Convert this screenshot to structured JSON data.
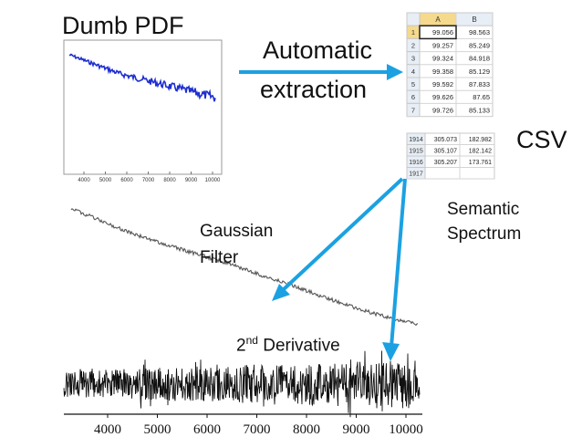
{
  "labels": {
    "dumb_pdf": "Dumb PDF",
    "automatic_1": "Automatic",
    "automatic_2": "extraction",
    "csv": "CSV",
    "semantic_1": "Semantic",
    "semantic_2": "Spectrum",
    "gaussian_1": "Gaussian",
    "gaussian_2": "Filter",
    "derivative_base": "2",
    "derivative_sup": "nd",
    "derivative_rest": " Derivative"
  },
  "pdf_thumb_ticks": [
    "4000",
    "5000",
    "6000",
    "7000",
    "8000",
    "9000",
    "10000"
  ],
  "spreadsheet_top": {
    "columns": [
      "A",
      "B"
    ],
    "rows": [
      {
        "n": "1",
        "a": "99.056",
        "b": "98.563"
      },
      {
        "n": "2",
        "a": "99.257",
        "b": "85.249"
      },
      {
        "n": "3",
        "a": "99.324",
        "b": "84.918"
      },
      {
        "n": "4",
        "a": "99.358",
        "b": "85.129"
      },
      {
        "n": "5",
        "a": "99.592",
        "b": "87.833"
      },
      {
        "n": "6",
        "a": "99.626",
        "b": "87.65"
      },
      {
        "n": "7",
        "a": "99.726",
        "b": "85.133"
      }
    ]
  },
  "spreadsheet_bottom": {
    "rows": [
      {
        "n": "1914",
        "a": "305.073",
        "b": "182.982"
      },
      {
        "n": "1915",
        "a": "305.107",
        "b": "182.142"
      },
      {
        "n": "1916",
        "a": "305.207",
        "b": "173.761"
      },
      {
        "n": "1917",
        "a": "",
        "b": ""
      }
    ]
  },
  "bottom_axis_ticks": [
    "4000",
    "5000",
    "6000",
    "7000",
    "8000",
    "9000",
    "10000"
  ],
  "colors": {
    "arrow": "#1ba1e2",
    "spectrum_blue": "#1f2fd0",
    "noise": "#111111"
  }
}
